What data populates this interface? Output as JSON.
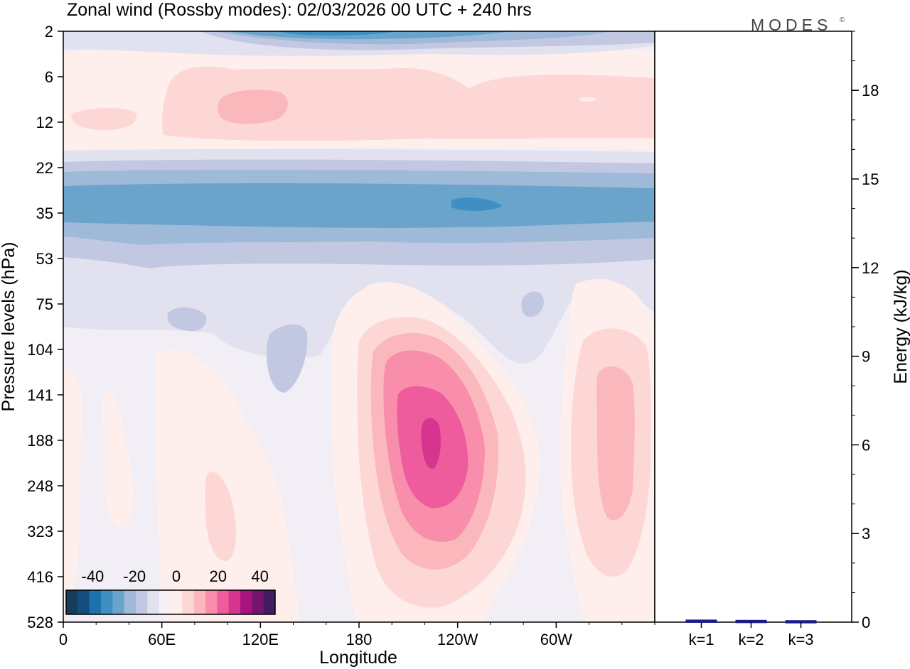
{
  "chart_data": {
    "type": "heatmap",
    "title": "Zonal wind (Rossby modes):  02/03/2026  00 UTC  + 240 hrs",
    "logo": "MODES",
    "logo_mark": "©",
    "xlabel": "Longitude",
    "ylabel": "Pressure levels (hPa)",
    "x_ticks": [
      "0",
      "60E",
      "120E",
      "180",
      "120W",
      "60W"
    ],
    "x_tick_degrees": [
      0,
      60,
      120,
      180,
      240,
      300
    ],
    "xlim_degrees": [
      0,
      360
    ],
    "y_ticks": [
      "2",
      "6",
      "12",
      "22",
      "35",
      "53",
      "75",
      "104",
      "141",
      "188",
      "248",
      "323",
      "416",
      "528"
    ],
    "colorbar": {
      "tick_labels": [
        "-40",
        "-20",
        "0",
        "20",
        "40"
      ],
      "tick_values": [
        -40,
        -20,
        0,
        20,
        40
      ],
      "range": [
        -50,
        50
      ],
      "colors": [
        "#173d5b",
        "#124f7f",
        "#1d72ae",
        "#3f8fc2",
        "#6aa4cb",
        "#9fb9d8",
        "#c2c8e1",
        "#e1e1ef",
        "#f6f1f7",
        "#ffefec",
        "#fdd7d6",
        "#fbb8bc",
        "#f88eab",
        "#ee5c9d",
        "#d6348f",
        "#a8137d",
        "#741670",
        "#431c5f"
      ]
    },
    "wind_features": [
      {
        "label": "stratospheric westerly-deficit band near 35 hPa",
        "lon_range": [
          0,
          360
        ],
        "level_range": [
          "22",
          "53"
        ],
        "u_min": -30
      },
      {
        "label": "easterly core near 2 hPa",
        "lon_range": [
          100,
          200
        ],
        "level_range": [
          "2",
          "6"
        ],
        "u_min": -25
      },
      {
        "label": "positive band 6-22 hPa",
        "lon_range": [
          0,
          360
        ],
        "level_range": [
          "6",
          "22"
        ],
        "u_max": 12
      },
      {
        "label": "positive jet core",
        "lon": 225,
        "level": "188",
        "u_max": 35
      },
      {
        "label": "positive jet east Pacific/Atlantic",
        "lon": 335,
        "level": "188",
        "u_max": 15
      },
      {
        "label": "positive lobe",
        "lon": 100,
        "level": "323",
        "u_max": 8
      }
    ],
    "energy_panel": {
      "ylabel": "Energy (kJ/kg)",
      "ylim": [
        0,
        20
      ],
      "y_ticks": [
        "0",
        "3",
        "6",
        "9",
        "12",
        "15",
        "18"
      ],
      "y_tick_values": [
        0,
        3,
        6,
        9,
        12,
        15,
        18
      ],
      "categories": [
        "k=1",
        "k=2",
        "k=3"
      ],
      "values": [
        0.05,
        0.04,
        0.03
      ],
      "bar_color": "#1a1a8c"
    }
  }
}
